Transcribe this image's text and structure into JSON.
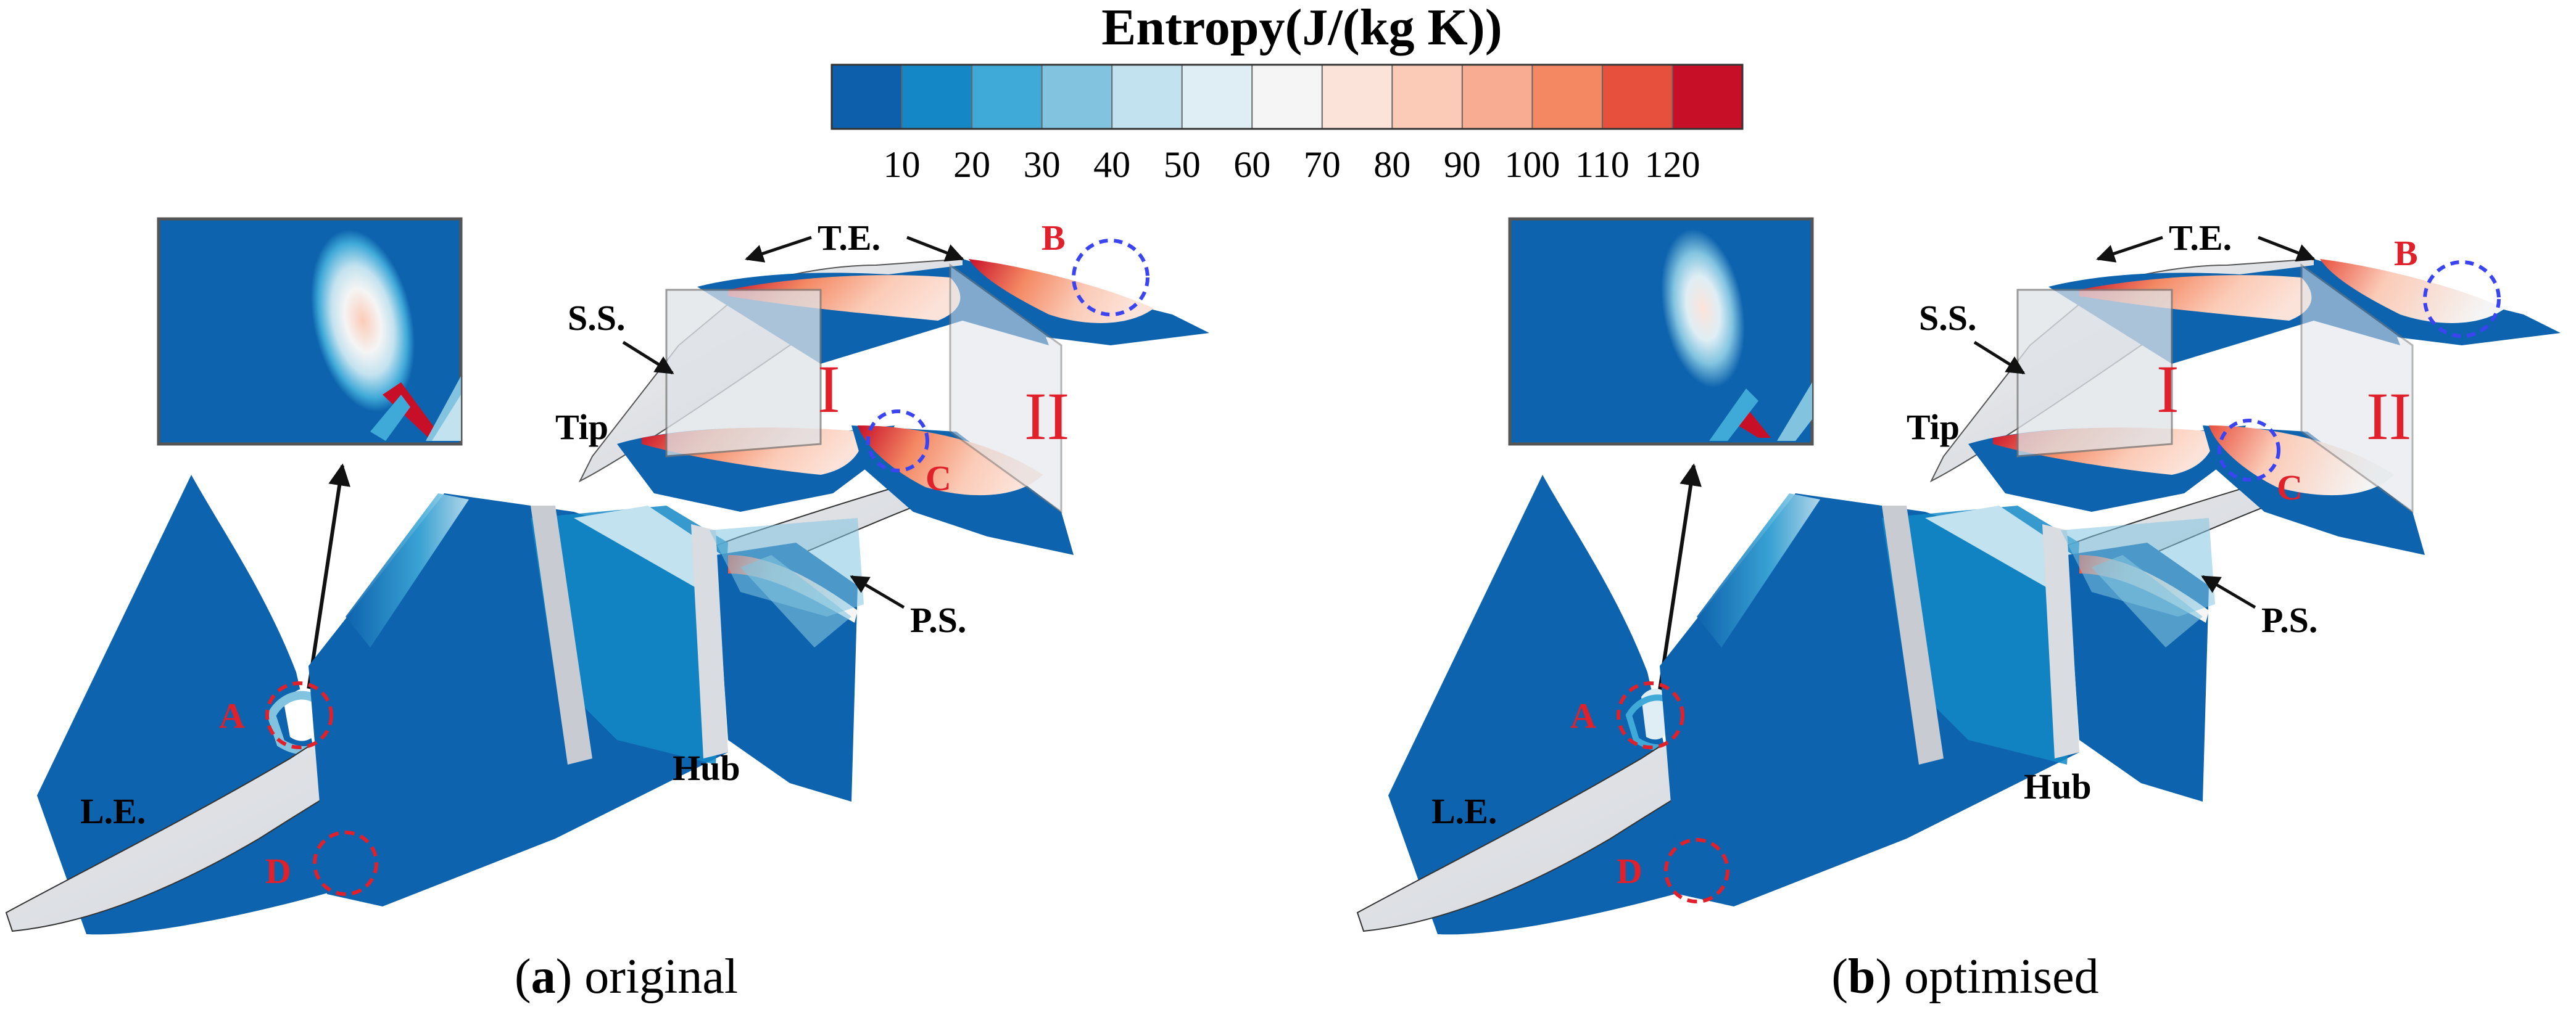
{
  "colorbar": {
    "title": "Entropy(J/(kg K))",
    "colors": [
      "#0d5fab",
      "#1488c6",
      "#3fa9d8",
      "#82c4e0",
      "#c3e2ef",
      "#dfeef5",
      "#f5f5f5",
      "#fce3d9",
      "#fbcbb7",
      "#f8ad92",
      "#f48863",
      "#e8503e",
      "#c80f28"
    ],
    "ticks": [
      "10",
      "20",
      "30",
      "40",
      "50",
      "60",
      "70",
      "80",
      "90",
      "100",
      "110",
      "120"
    ]
  },
  "panels": [
    {
      "caption_letter": "a",
      "caption_text": " original",
      "labels": {
        "te": "T.E.",
        "ss": "S.S.",
        "tip": "Tip",
        "ps": "P.S.",
        "hub": "Hub",
        "le": "L.E.",
        "row_one": "I",
        "row_two": "II",
        "point_a": "A",
        "point_b": "B",
        "point_c": "C",
        "point_d": "D"
      }
    },
    {
      "caption_letter": "b",
      "caption_text": " optimised",
      "labels": {
        "te": "T.E.",
        "ss": "S.S.",
        "tip": "Tip",
        "ps": "P.S.",
        "hub": "Hub",
        "le": "L.E.",
        "row_one": "I",
        "row_two": "II",
        "point_a": "A",
        "point_b": "B",
        "point_c": "C",
        "point_d": "D"
      }
    }
  ],
  "palette": {
    "label_red": "#e0202a",
    "highlight_blue": "#3a44f0",
    "blade_grey": "#e3e5e8",
    "low_entropy": "#0d63ad"
  }
}
